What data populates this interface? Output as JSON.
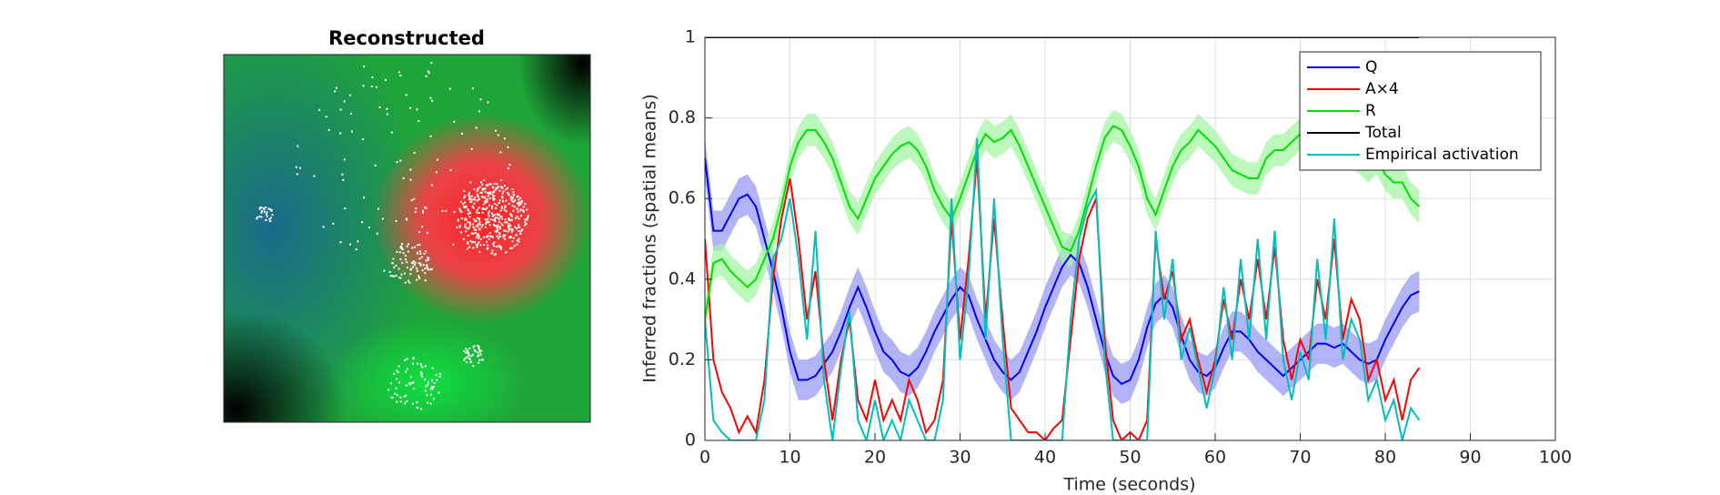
{
  "chart_data": [
    {
      "type": "image",
      "title": "Reconstructed"
    },
    {
      "type": "line",
      "xlabel": "Time (seconds)",
      "ylabel": "Inferred fractions (spatial means)",
      "xlim": [
        0,
        100
      ],
      "xticks": [
        0,
        10,
        20,
        30,
        40,
        50,
        60,
        70,
        80,
        90,
        100
      ],
      "ylim": [
        0,
        1
      ],
      "yticks": [
        0,
        0.2,
        0.4,
        0.6,
        0.8,
        1
      ],
      "grid": true,
      "legend": "upper right",
      "x": [
        0,
        1,
        2,
        3,
        4,
        5,
        6,
        7,
        8,
        9,
        10,
        11,
        12,
        13,
        14,
        15,
        16,
        17,
        18,
        19,
        20,
        21,
        22,
        23,
        24,
        25,
        26,
        27,
        28,
        29,
        30,
        31,
        32,
        33,
        34,
        35,
        36,
        37,
        38,
        39,
        40,
        41,
        42,
        43,
        44,
        45,
        46,
        47,
        48,
        49,
        50,
        51,
        52,
        53,
        54,
        55,
        56,
        57,
        58,
        59,
        60,
        61,
        62,
        63,
        64,
        65,
        66,
        67,
        68,
        69,
        70,
        71,
        72,
        73,
        74,
        75,
        76,
        77,
        78,
        79,
        80,
        81,
        82,
        83,
        84
      ],
      "series": [
        {
          "name": "Q",
          "color": "#0000ff",
          "band_color": "#9a9af5",
          "values": [
            0.7,
            0.52,
            0.52,
            0.56,
            0.6,
            0.61,
            0.58,
            0.5,
            0.42,
            0.33,
            0.22,
            0.15,
            0.15,
            0.16,
            0.19,
            0.22,
            0.27,
            0.33,
            0.38,
            0.33,
            0.27,
            0.22,
            0.2,
            0.17,
            0.16,
            0.18,
            0.22,
            0.27,
            0.31,
            0.35,
            0.38,
            0.36,
            0.3,
            0.25,
            0.2,
            0.17,
            0.15,
            0.17,
            0.22,
            0.27,
            0.33,
            0.38,
            0.43,
            0.46,
            0.44,
            0.38,
            0.3,
            0.22,
            0.16,
            0.14,
            0.15,
            0.2,
            0.28,
            0.34,
            0.36,
            0.33,
            0.26,
            0.2,
            0.17,
            0.16,
            0.18,
            0.23,
            0.27,
            0.27,
            0.25,
            0.22,
            0.2,
            0.18,
            0.16,
            0.18,
            0.2,
            0.22,
            0.24,
            0.24,
            0.23,
            0.24,
            0.22,
            0.2,
            0.19,
            0.2,
            0.25,
            0.29,
            0.33,
            0.36,
            0.37
          ],
          "upper": [
            0.75,
            0.57,
            0.57,
            0.61,
            0.65,
            0.66,
            0.63,
            0.55,
            0.47,
            0.38,
            0.27,
            0.2,
            0.2,
            0.21,
            0.24,
            0.27,
            0.32,
            0.38,
            0.43,
            0.38,
            0.32,
            0.27,
            0.25,
            0.22,
            0.21,
            0.23,
            0.27,
            0.32,
            0.36,
            0.4,
            0.43,
            0.41,
            0.35,
            0.3,
            0.25,
            0.22,
            0.2,
            0.22,
            0.27,
            0.32,
            0.38,
            0.43,
            0.48,
            0.51,
            0.49,
            0.43,
            0.35,
            0.27,
            0.21,
            0.19,
            0.2,
            0.25,
            0.33,
            0.39,
            0.41,
            0.38,
            0.31,
            0.25,
            0.22,
            0.21,
            0.23,
            0.28,
            0.32,
            0.32,
            0.3,
            0.27,
            0.25,
            0.23,
            0.21,
            0.23,
            0.25,
            0.27,
            0.29,
            0.29,
            0.28,
            0.29,
            0.27,
            0.25,
            0.24,
            0.25,
            0.3,
            0.34,
            0.38,
            0.41,
            0.42
          ],
          "lower": [
            0.65,
            0.47,
            0.47,
            0.51,
            0.55,
            0.56,
            0.53,
            0.45,
            0.37,
            0.28,
            0.17,
            0.1,
            0.1,
            0.11,
            0.14,
            0.17,
            0.22,
            0.28,
            0.33,
            0.28,
            0.22,
            0.17,
            0.15,
            0.12,
            0.11,
            0.13,
            0.17,
            0.22,
            0.26,
            0.3,
            0.33,
            0.31,
            0.25,
            0.2,
            0.15,
            0.12,
            0.1,
            0.12,
            0.17,
            0.22,
            0.28,
            0.33,
            0.38,
            0.41,
            0.39,
            0.33,
            0.25,
            0.17,
            0.11,
            0.09,
            0.1,
            0.15,
            0.23,
            0.29,
            0.31,
            0.28,
            0.21,
            0.15,
            0.12,
            0.11,
            0.13,
            0.18,
            0.22,
            0.22,
            0.2,
            0.17,
            0.15,
            0.13,
            0.11,
            0.13,
            0.15,
            0.17,
            0.19,
            0.19,
            0.18,
            0.19,
            0.17,
            0.15,
            0.14,
            0.15,
            0.2,
            0.24,
            0.28,
            0.31,
            0.32
          ]
        },
        {
          "name": "A×4",
          "color": "#ff0000",
          "values": [
            0.5,
            0.2,
            0.12,
            0.08,
            0.02,
            0.06,
            0.02,
            0.15,
            0.4,
            0.55,
            0.65,
            0.5,
            0.3,
            0.42,
            0.2,
            0.05,
            0.2,
            0.3,
            0.1,
            0.05,
            0.15,
            0.05,
            0.1,
            0.05,
            0.15,
            0.1,
            0.02,
            0.05,
            0.15,
            0.55,
            0.25,
            0.45,
            0.7,
            0.3,
            0.55,
            0.3,
            0.08,
            0.05,
            0.02,
            0.02,
            0.0,
            0.03,
            0.05,
            0.25,
            0.45,
            0.55,
            0.6,
            0.25,
            0.05,
            0.0,
            0.02,
            0.0,
            0.05,
            0.5,
            0.35,
            0.42,
            0.25,
            0.3,
            0.2,
            0.12,
            0.2,
            0.35,
            0.25,
            0.4,
            0.3,
            0.45,
            0.3,
            0.48,
            0.25,
            0.15,
            0.25,
            0.2,
            0.4,
            0.3,
            0.5,
            0.25,
            0.35,
            0.3,
            0.15,
            0.2,
            0.1,
            0.15,
            0.05,
            0.15,
            0.18
          ]
        },
        {
          "name": "R",
          "color": "#00e000",
          "band_color": "#a6f5a6",
          "values": [
            0.3,
            0.44,
            0.45,
            0.42,
            0.4,
            0.38,
            0.4,
            0.45,
            0.5,
            0.58,
            0.68,
            0.74,
            0.77,
            0.77,
            0.74,
            0.7,
            0.64,
            0.58,
            0.55,
            0.6,
            0.65,
            0.68,
            0.71,
            0.73,
            0.74,
            0.72,
            0.68,
            0.62,
            0.58,
            0.55,
            0.6,
            0.66,
            0.72,
            0.76,
            0.74,
            0.75,
            0.77,
            0.73,
            0.68,
            0.63,
            0.58,
            0.53,
            0.48,
            0.47,
            0.52,
            0.6,
            0.68,
            0.75,
            0.78,
            0.77,
            0.73,
            0.68,
            0.6,
            0.56,
            0.62,
            0.68,
            0.72,
            0.74,
            0.77,
            0.75,
            0.73,
            0.7,
            0.67,
            0.66,
            0.65,
            0.65,
            0.7,
            0.72,
            0.72,
            0.74,
            0.76,
            0.73,
            0.72,
            0.74,
            0.76,
            0.75,
            0.72,
            0.7,
            0.68,
            0.7,
            0.66,
            0.64,
            0.64,
            0.6,
            0.58
          ],
          "upper": [
            0.34,
            0.48,
            0.49,
            0.46,
            0.44,
            0.42,
            0.44,
            0.49,
            0.54,
            0.62,
            0.72,
            0.78,
            0.81,
            0.81,
            0.78,
            0.74,
            0.68,
            0.62,
            0.59,
            0.64,
            0.69,
            0.72,
            0.75,
            0.77,
            0.78,
            0.76,
            0.72,
            0.66,
            0.62,
            0.59,
            0.64,
            0.7,
            0.76,
            0.8,
            0.78,
            0.79,
            0.81,
            0.77,
            0.72,
            0.67,
            0.62,
            0.57,
            0.52,
            0.51,
            0.56,
            0.64,
            0.72,
            0.79,
            0.82,
            0.81,
            0.77,
            0.72,
            0.64,
            0.6,
            0.66,
            0.72,
            0.76,
            0.78,
            0.81,
            0.79,
            0.77,
            0.74,
            0.71,
            0.7,
            0.69,
            0.69,
            0.74,
            0.76,
            0.76,
            0.78,
            0.8,
            0.77,
            0.76,
            0.78,
            0.8,
            0.79,
            0.76,
            0.74,
            0.72,
            0.74,
            0.7,
            0.68,
            0.68,
            0.64,
            0.62
          ],
          "lower": [
            0.26,
            0.4,
            0.41,
            0.38,
            0.36,
            0.34,
            0.36,
            0.41,
            0.46,
            0.54,
            0.64,
            0.7,
            0.73,
            0.73,
            0.7,
            0.66,
            0.6,
            0.54,
            0.51,
            0.56,
            0.61,
            0.64,
            0.67,
            0.69,
            0.7,
            0.68,
            0.64,
            0.58,
            0.54,
            0.51,
            0.56,
            0.62,
            0.68,
            0.72,
            0.7,
            0.71,
            0.73,
            0.69,
            0.64,
            0.59,
            0.54,
            0.49,
            0.44,
            0.43,
            0.48,
            0.56,
            0.64,
            0.71,
            0.74,
            0.73,
            0.69,
            0.64,
            0.56,
            0.52,
            0.58,
            0.64,
            0.68,
            0.7,
            0.73,
            0.71,
            0.69,
            0.66,
            0.63,
            0.62,
            0.61,
            0.61,
            0.66,
            0.68,
            0.68,
            0.7,
            0.72,
            0.69,
            0.68,
            0.7,
            0.72,
            0.71,
            0.68,
            0.66,
            0.64,
            0.66,
            0.62,
            0.6,
            0.6,
            0.56,
            0.54
          ]
        },
        {
          "name": "Total",
          "color": "#000000",
          "values": [
            1,
            1,
            1,
            1,
            1,
            1,
            1,
            1,
            1,
            1,
            1,
            1,
            1,
            1,
            1,
            1,
            1,
            1,
            1,
            1,
            1,
            1,
            1,
            1,
            1,
            1,
            1,
            1,
            1,
            1,
            1,
            1,
            1,
            1,
            1,
            1,
            1,
            1,
            1,
            1,
            1,
            1,
            1,
            1,
            1,
            1,
            1,
            1,
            1,
            1,
            1,
            1,
            1,
            1,
            1,
            1,
            1,
            1,
            1,
            1,
            1,
            1,
            1,
            1,
            1,
            1,
            1,
            1,
            1,
            1,
            1,
            1,
            1,
            1,
            1,
            1,
            1,
            1,
            1,
            1,
            1,
            1,
            1,
            1,
            1
          ]
        },
        {
          "name": "Empirical activation",
          "color": "#00bfbf",
          "values": [
            0.3,
            0.05,
            0.02,
            0.0,
            0.0,
            0.0,
            0.0,
            0.1,
            0.45,
            0.5,
            0.6,
            0.45,
            0.25,
            0.52,
            0.15,
            0.0,
            0.18,
            0.32,
            0.05,
            0.0,
            0.1,
            0.0,
            0.05,
            0.0,
            0.1,
            0.05,
            0.0,
            0.0,
            0.1,
            0.6,
            0.2,
            0.4,
            0.75,
            0.25,
            0.6,
            0.25,
            0.0,
            0.0,
            0.0,
            0.0,
            0.0,
            0.0,
            0.0,
            0.3,
            0.5,
            0.58,
            0.62,
            0.2,
            0.0,
            0.0,
            0.0,
            0.0,
            0.0,
            0.52,
            0.3,
            0.45,
            0.2,
            0.28,
            0.18,
            0.08,
            0.18,
            0.38,
            0.2,
            0.45,
            0.25,
            0.5,
            0.25,
            0.52,
            0.2,
            0.1,
            0.22,
            0.15,
            0.45,
            0.25,
            0.55,
            0.2,
            0.3,
            0.25,
            0.1,
            0.15,
            0.05,
            0.1,
            0.0,
            0.08,
            0.05
          ]
        }
      ]
    }
  ]
}
